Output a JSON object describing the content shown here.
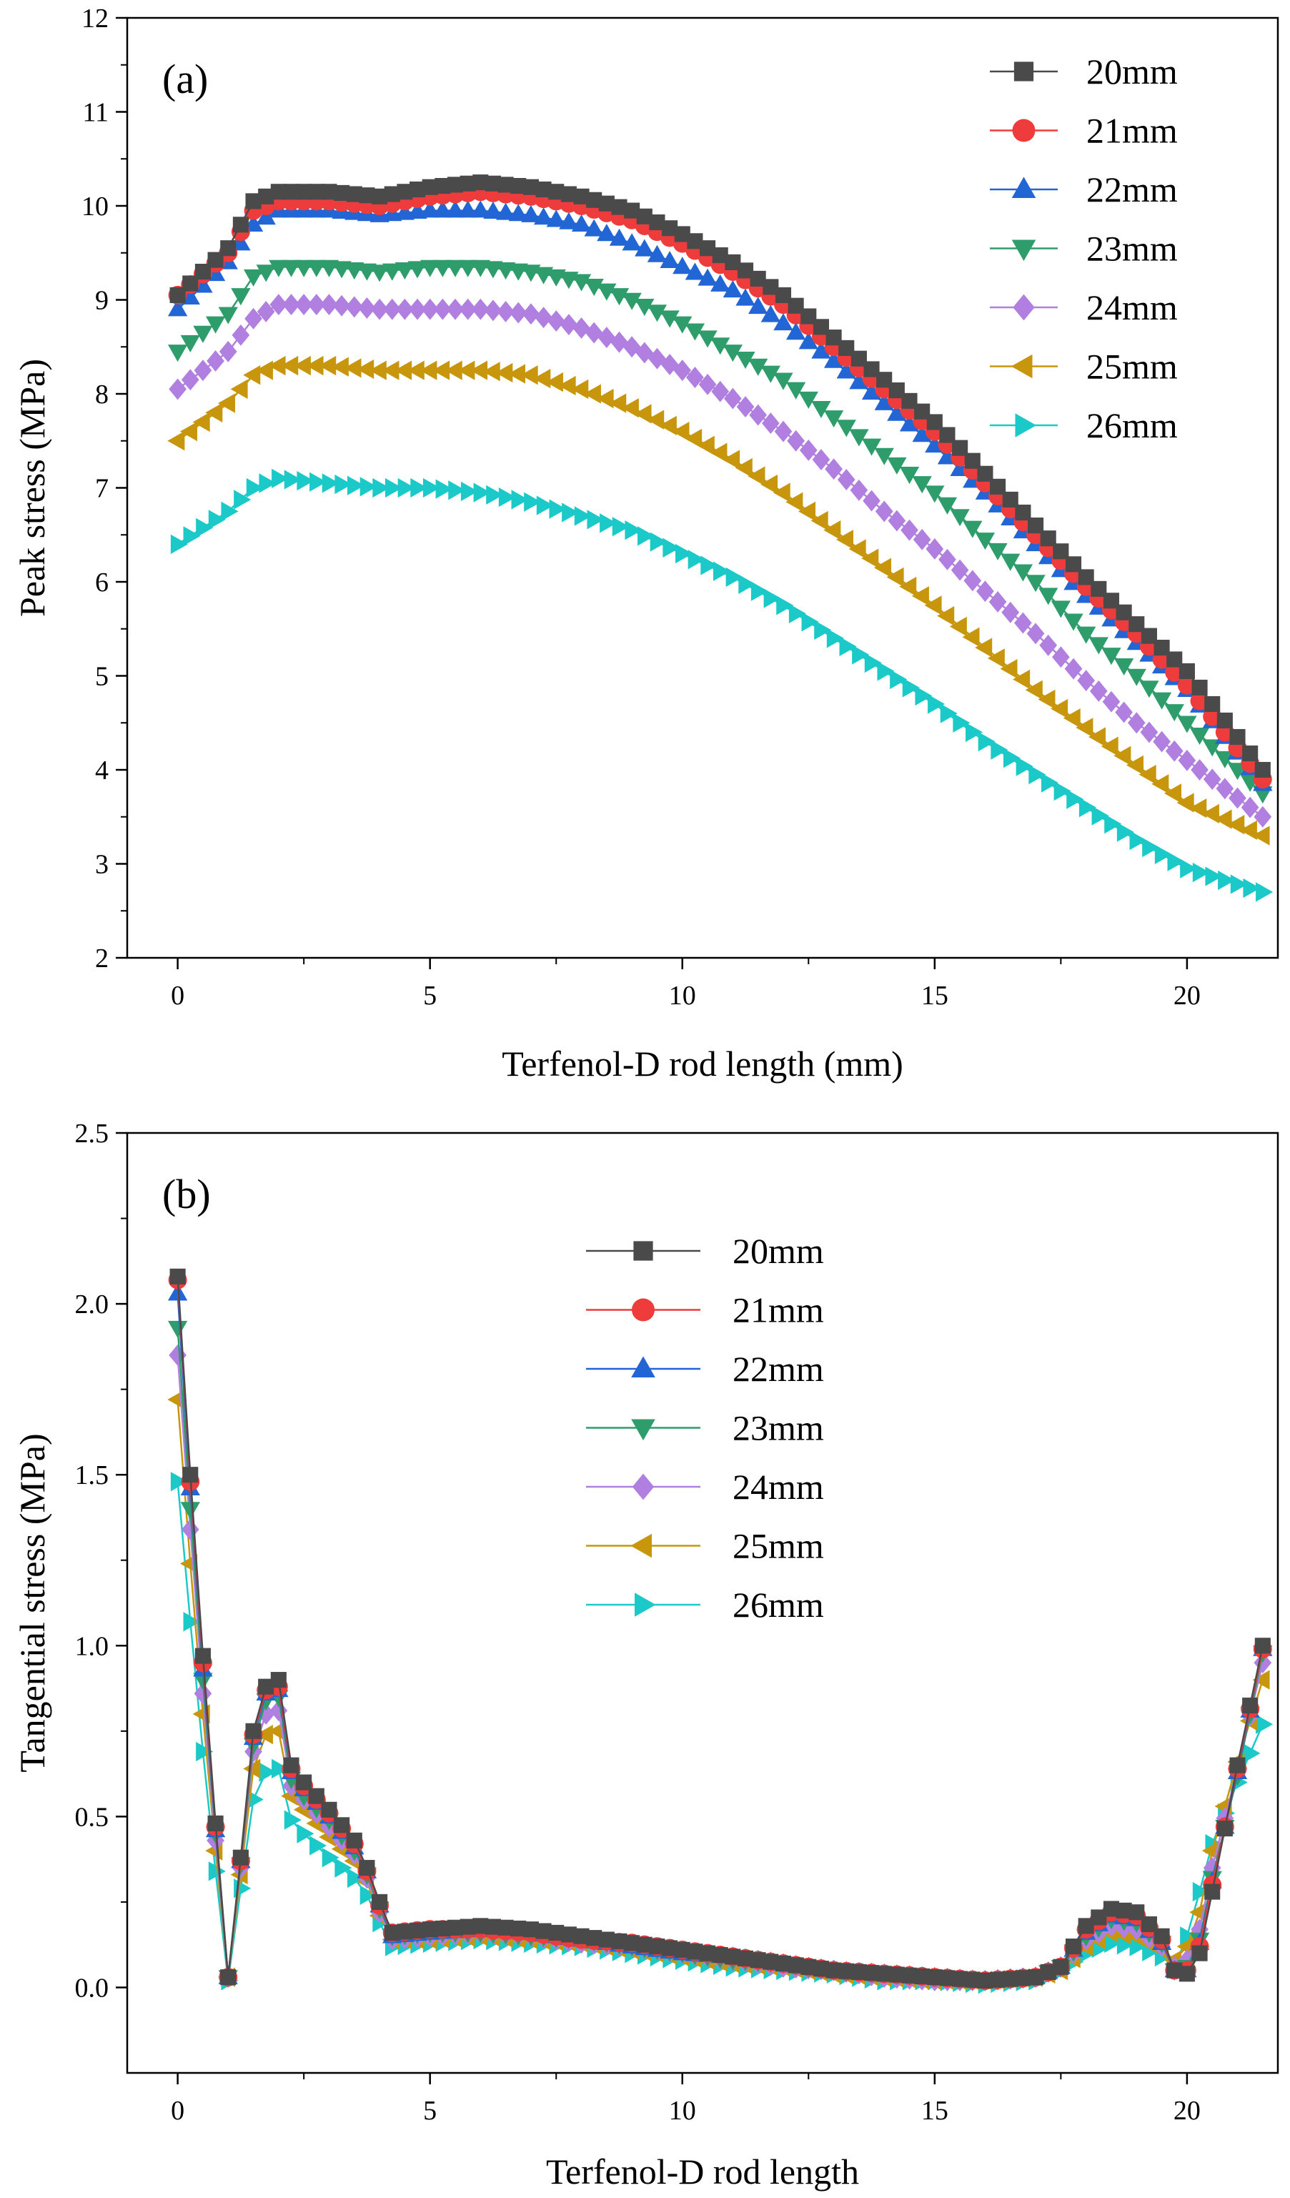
{
  "figure": {
    "colors": {
      "20mm": "#4a4a4a",
      "21mm": "#ee3b3b",
      "22mm": "#2166d4",
      "23mm": "#2e9d6b",
      "24mm": "#b07fe0",
      "25mm": "#c8960c",
      "26mm": "#1cc9c9"
    },
    "markers": {
      "20mm": "square",
      "21mm": "circle",
      "22mm": "triangle-up",
      "23mm": "triangle-down",
      "24mm": "diamond",
      "25mm": "triangle-left",
      "26mm": "triangle-right"
    }
  },
  "chart_data": [
    {
      "id": "a",
      "type": "line",
      "panel_label": "(a)",
      "title": "",
      "xlabel": "Terfenol-D rod length (mm)",
      "ylabel": "Peak stress (MPa)",
      "xlim": [
        -1,
        21.8
      ],
      "ylim": [
        2,
        12
      ],
      "xticks": [
        0,
        5,
        10,
        15,
        20
      ],
      "yticks": [
        2,
        3,
        4,
        5,
        6,
        7,
        8,
        9,
        10,
        11,
        12
      ],
      "grid": false,
      "legend_position": "top-right",
      "x_range": [
        0,
        21.5
      ],
      "x_step": 0.25,
      "series": [
        {
          "name": "20mm",
          "x": [
            0,
            1,
            1.5,
            2,
            3,
            4,
            5,
            6,
            7,
            8,
            9,
            10,
            11,
            12,
            13,
            14,
            15,
            16,
            17,
            18,
            19,
            20,
            21.5
          ],
          "y": [
            9.05,
            9.55,
            10.05,
            10.15,
            10.15,
            10.1,
            10.2,
            10.25,
            10.2,
            10.1,
            9.95,
            9.7,
            9.4,
            9.05,
            8.6,
            8.15,
            7.7,
            7.15,
            6.6,
            6.05,
            5.55,
            5.05,
            4.0
          ]
        },
        {
          "name": "21mm",
          "x": [
            0,
            1,
            1.5,
            2,
            3,
            4,
            5,
            6,
            7,
            8,
            9,
            10,
            11,
            12,
            13,
            14,
            15,
            16,
            17,
            18,
            19,
            20,
            21.5
          ],
          "y": [
            9.05,
            9.5,
            9.95,
            10.05,
            10.05,
            10.0,
            10.1,
            10.15,
            10.1,
            10.0,
            9.85,
            9.6,
            9.3,
            8.95,
            8.5,
            8.05,
            7.6,
            7.05,
            6.5,
            5.95,
            5.45,
            4.9,
            3.9
          ]
        },
        {
          "name": "22mm",
          "x": [
            0,
            1,
            1.5,
            2,
            3,
            4,
            5,
            6,
            7,
            8,
            9,
            10,
            11,
            12,
            13,
            14,
            15,
            16,
            17,
            18,
            19,
            20,
            21.5
          ],
          "y": [
            8.9,
            9.4,
            9.8,
            9.95,
            9.95,
            9.9,
            9.95,
            9.95,
            9.9,
            9.8,
            9.6,
            9.35,
            9.1,
            8.75,
            8.35,
            7.9,
            7.45,
            6.95,
            6.4,
            5.85,
            5.35,
            4.85,
            3.85
          ]
        },
        {
          "name": "23mm",
          "x": [
            0,
            1,
            1.5,
            2,
            3,
            4,
            5,
            6,
            7,
            8,
            9,
            10,
            11,
            12,
            13,
            14,
            15,
            16,
            17,
            18,
            19,
            20,
            21.5
          ],
          "y": [
            8.45,
            8.85,
            9.25,
            9.35,
            9.35,
            9.3,
            9.35,
            9.35,
            9.3,
            9.2,
            9.0,
            8.75,
            8.45,
            8.15,
            7.75,
            7.35,
            6.95,
            6.45,
            6.0,
            5.45,
            5.0,
            4.5,
            3.75
          ]
        },
        {
          "name": "24mm",
          "x": [
            0,
            1,
            1.5,
            2,
            3,
            4,
            5,
            6,
            7,
            8,
            9,
            10,
            11,
            12,
            13,
            14,
            15,
            16,
            17,
            18,
            19,
            20,
            21.5
          ],
          "y": [
            8.05,
            8.45,
            8.8,
            8.95,
            8.95,
            8.9,
            8.9,
            8.9,
            8.85,
            8.7,
            8.5,
            8.25,
            7.95,
            7.6,
            7.2,
            6.75,
            6.35,
            5.9,
            5.45,
            4.95,
            4.5,
            4.1,
            3.5
          ]
        },
        {
          "name": "25mm",
          "x": [
            0,
            1,
            1.5,
            2,
            3,
            4,
            5,
            6,
            7,
            8,
            9,
            10,
            11,
            12,
            13,
            14,
            15,
            16,
            17,
            18,
            19,
            20,
            21.5
          ],
          "y": [
            7.5,
            7.9,
            8.2,
            8.3,
            8.3,
            8.25,
            8.25,
            8.25,
            8.2,
            8.05,
            7.85,
            7.6,
            7.3,
            6.95,
            6.55,
            6.15,
            5.75,
            5.3,
            4.85,
            4.45,
            4.05,
            3.65,
            3.3
          ]
        },
        {
          "name": "26mm",
          "x": [
            0,
            1,
            1.5,
            2,
            3,
            4,
            5,
            6,
            7,
            8,
            9,
            10,
            11,
            12,
            13,
            14,
            15,
            16,
            17,
            18,
            19,
            20,
            21.5
          ],
          "y": [
            6.4,
            6.75,
            7.0,
            7.1,
            7.05,
            7.0,
            7.0,
            6.95,
            6.85,
            6.7,
            6.55,
            6.3,
            6.05,
            5.75,
            5.4,
            5.05,
            4.7,
            4.3,
            3.95,
            3.6,
            3.25,
            2.95,
            2.7
          ]
        }
      ]
    },
    {
      "id": "b",
      "type": "line",
      "panel_label": "(b)",
      "title": "",
      "xlabel": "Terfenol-D rod length",
      "ylabel": "Tangential stress (MPa)",
      "xlim": [
        -1,
        21.8
      ],
      "ylim": [
        -0.25,
        2.5
      ],
      "xticks": [
        0,
        5,
        10,
        15,
        20
      ],
      "yticks": [
        0.0,
        0.5,
        1.0,
        1.5,
        2.0,
        2.5
      ],
      "ytick_labels": [
        "0.0",
        "0.5",
        "1.0",
        "1.5",
        "2.0",
        "2.5"
      ],
      "grid": false,
      "legend_position": "upper-center",
      "x_range": [
        0,
        21.5
      ],
      "x_step": 0.25,
      "series": [
        {
          "name": "20mm",
          "x": [
            0,
            0.25,
            0.5,
            0.75,
            1.0,
            1.25,
            1.5,
            1.75,
            2.0,
            2.25,
            2.5,
            3.0,
            3.5,
            3.75,
            4.0,
            4.25,
            5,
            6,
            7,
            8,
            9,
            10,
            11,
            12,
            13,
            14,
            15,
            16,
            17,
            17.5,
            18,
            18.5,
            19,
            19.5,
            19.75,
            20,
            20.25,
            20.5,
            21,
            21.5
          ],
          "y": [
            2.08,
            1.5,
            0.97,
            0.48,
            0.03,
            0.38,
            0.75,
            0.88,
            0.9,
            0.65,
            0.6,
            0.52,
            0.43,
            0.35,
            0.25,
            0.16,
            0.17,
            0.18,
            0.17,
            0.15,
            0.13,
            0.11,
            0.09,
            0.07,
            0.05,
            0.04,
            0.03,
            0.02,
            0.03,
            0.06,
            0.18,
            0.23,
            0.22,
            0.15,
            0.05,
            0.04,
            0.1,
            0.28,
            0.65,
            1.0
          ]
        },
        {
          "name": "21mm",
          "x": [
            0,
            0.25,
            0.5,
            0.75,
            1.0,
            1.25,
            1.5,
            1.75,
            2.0,
            2.25,
            2.5,
            3.0,
            3.5,
            3.75,
            4.0,
            4.25,
            5,
            6,
            7,
            8,
            9,
            10,
            11,
            12,
            13,
            14,
            15,
            16,
            17,
            17.5,
            18,
            18.5,
            19,
            19.5,
            19.75,
            20,
            20.25,
            20.5,
            21,
            21.5
          ],
          "y": [
            2.07,
            1.48,
            0.95,
            0.47,
            0.03,
            0.37,
            0.74,
            0.87,
            0.88,
            0.64,
            0.59,
            0.51,
            0.42,
            0.34,
            0.24,
            0.16,
            0.17,
            0.17,
            0.16,
            0.14,
            0.13,
            0.11,
            0.09,
            0.07,
            0.05,
            0.04,
            0.03,
            0.02,
            0.03,
            0.06,
            0.17,
            0.22,
            0.21,
            0.14,
            0.05,
            0.05,
            0.12,
            0.3,
            0.64,
            0.99
          ]
        },
        {
          "name": "22mm",
          "x": [
            0,
            0.25,
            0.5,
            0.75,
            1.0,
            1.25,
            1.5,
            1.75,
            2.0,
            2.25,
            2.5,
            3.0,
            3.5,
            3.75,
            4.0,
            4.25,
            5,
            6,
            7,
            8,
            9,
            10,
            11,
            12,
            13,
            14,
            15,
            16,
            17,
            17.5,
            18,
            18.5,
            19,
            19.5,
            19.75,
            20,
            20.25,
            20.5,
            21,
            21.5
          ],
          "y": [
            2.03,
            1.46,
            0.93,
            0.46,
            0.03,
            0.37,
            0.73,
            0.86,
            0.87,
            0.63,
            0.58,
            0.5,
            0.41,
            0.34,
            0.24,
            0.15,
            0.16,
            0.17,
            0.16,
            0.14,
            0.12,
            0.1,
            0.09,
            0.07,
            0.05,
            0.04,
            0.03,
            0.02,
            0.03,
            0.06,
            0.16,
            0.21,
            0.2,
            0.13,
            0.05,
            0.05,
            0.13,
            0.31,
            0.63,
            0.99
          ]
        },
        {
          "name": "23mm",
          "x": [
            0,
            0.25,
            0.5,
            0.75,
            1.0,
            1.25,
            1.5,
            1.75,
            2.0,
            2.25,
            2.5,
            3.0,
            3.5,
            3.75,
            4.0,
            4.25,
            5,
            6,
            7,
            8,
            9,
            10,
            11,
            12,
            13,
            14,
            15,
            16,
            17,
            17.5,
            18,
            18.5,
            19,
            19.5,
            19.75,
            20,
            20.25,
            20.5,
            21,
            21.5
          ],
          "y": [
            1.93,
            1.4,
            0.9,
            0.45,
            0.03,
            0.36,
            0.71,
            0.84,
            0.85,
            0.61,
            0.56,
            0.49,
            0.4,
            0.33,
            0.23,
            0.15,
            0.16,
            0.16,
            0.15,
            0.14,
            0.12,
            0.1,
            0.08,
            0.07,
            0.05,
            0.04,
            0.03,
            0.02,
            0.03,
            0.06,
            0.15,
            0.2,
            0.19,
            0.13,
            0.05,
            0.06,
            0.14,
            0.32,
            0.62,
            0.98
          ]
        },
        {
          "name": "24mm",
          "x": [
            0,
            0.25,
            0.5,
            0.75,
            1.0,
            1.25,
            1.5,
            1.75,
            2.0,
            2.25,
            2.5,
            3.0,
            3.5,
            3.75,
            4.0,
            4.25,
            5,
            6,
            7,
            8,
            9,
            10,
            11,
            12,
            13,
            14,
            15,
            16,
            17,
            17.5,
            18,
            18.5,
            19,
            19.5,
            19.75,
            20,
            20.25,
            20.5,
            21,
            21.5
          ],
          "y": [
            1.85,
            1.34,
            0.86,
            0.43,
            0.03,
            0.35,
            0.69,
            0.8,
            0.81,
            0.59,
            0.55,
            0.47,
            0.39,
            0.32,
            0.22,
            0.14,
            0.15,
            0.16,
            0.15,
            0.13,
            0.12,
            0.1,
            0.08,
            0.06,
            0.05,
            0.03,
            0.02,
            0.02,
            0.03,
            0.06,
            0.14,
            0.18,
            0.17,
            0.12,
            0.06,
            0.08,
            0.17,
            0.35,
            0.64,
            0.95
          ]
        },
        {
          "name": "25mm",
          "x": [
            0,
            0.25,
            0.5,
            0.75,
            1.0,
            1.25,
            1.5,
            1.75,
            2.0,
            2.25,
            2.5,
            3.0,
            3.5,
            3.75,
            4.0,
            4.25,
            5,
            6,
            7,
            8,
            9,
            10,
            11,
            12,
            13,
            14,
            15,
            16,
            17,
            17.5,
            18,
            18.5,
            19,
            19.5,
            19.75,
            20,
            20.25,
            20.5,
            21,
            21.5
          ],
          "y": [
            1.72,
            1.24,
            0.8,
            0.4,
            0.03,
            0.33,
            0.64,
            0.74,
            0.75,
            0.56,
            0.52,
            0.44,
            0.37,
            0.31,
            0.21,
            0.14,
            0.14,
            0.15,
            0.14,
            0.13,
            0.11,
            0.09,
            0.07,
            0.06,
            0.04,
            0.03,
            0.02,
            0.02,
            0.03,
            0.05,
            0.12,
            0.16,
            0.15,
            0.11,
            0.08,
            0.12,
            0.22,
            0.4,
            0.66,
            0.9
          ]
        },
        {
          "name": "26mm",
          "x": [
            0,
            0.25,
            0.5,
            0.75,
            1.0,
            1.25,
            1.5,
            1.75,
            2.0,
            2.25,
            2.5,
            3.0,
            3.5,
            3.75,
            4.0,
            4.25,
            5,
            6,
            7,
            8,
            9,
            10,
            11,
            12,
            13,
            14,
            15,
            16,
            17,
            17.5,
            18,
            18.5,
            19,
            19.5,
            19.75,
            20,
            20.25,
            20.5,
            21,
            21.5
          ],
          "y": [
            1.48,
            1.07,
            0.69,
            0.34,
            0.02,
            0.29,
            0.55,
            0.63,
            0.64,
            0.49,
            0.45,
            0.38,
            0.32,
            0.27,
            0.19,
            0.12,
            0.13,
            0.14,
            0.13,
            0.12,
            0.1,
            0.08,
            0.06,
            0.05,
            0.04,
            0.02,
            0.02,
            0.01,
            0.02,
            0.05,
            0.1,
            0.13,
            0.12,
            0.09,
            0.06,
            0.15,
            0.28,
            0.42,
            0.6,
            0.77
          ]
        }
      ]
    }
  ]
}
